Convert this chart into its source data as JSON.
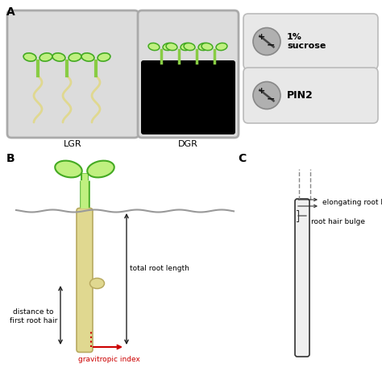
{
  "bg_color": "#ffffff",
  "panel_a_label": "A",
  "panel_b_label": "B",
  "panel_c_label": "C",
  "lgr_label": "LGR",
  "dgr_label": "DGR",
  "sucrose_label": "1%\nsucrose",
  "pin2_label": "PIN2",
  "distance_label": "distance to\nfirst root hair",
  "total_root_label": "total root length",
  "gravitropic_label": "gravitropic index",
  "elongating_label": "elongating root hair",
  "root_hair_bulge_label": "root hair bulge",
  "plate_bg": "#dcdcdc",
  "plate_border": "#aaaaaa",
  "legend_box_color": "#e8e8e8",
  "legend_box_border": "#bbbbbb",
  "circle_color": "#a8a8a8",
  "root_color": "#e0d890",
  "root_border": "#b8aa60",
  "shoot_light": "#c0f080",
  "shoot_dark": "#44aa22",
  "soil_color": "#aaaaaa",
  "arrow_color": "#222222",
  "red_color": "#cc0000",
  "text_color": "#222222",
  "dark_agar": "#000000",
  "tube_color": "#f0f0f0",
  "tube_border": "#333333"
}
